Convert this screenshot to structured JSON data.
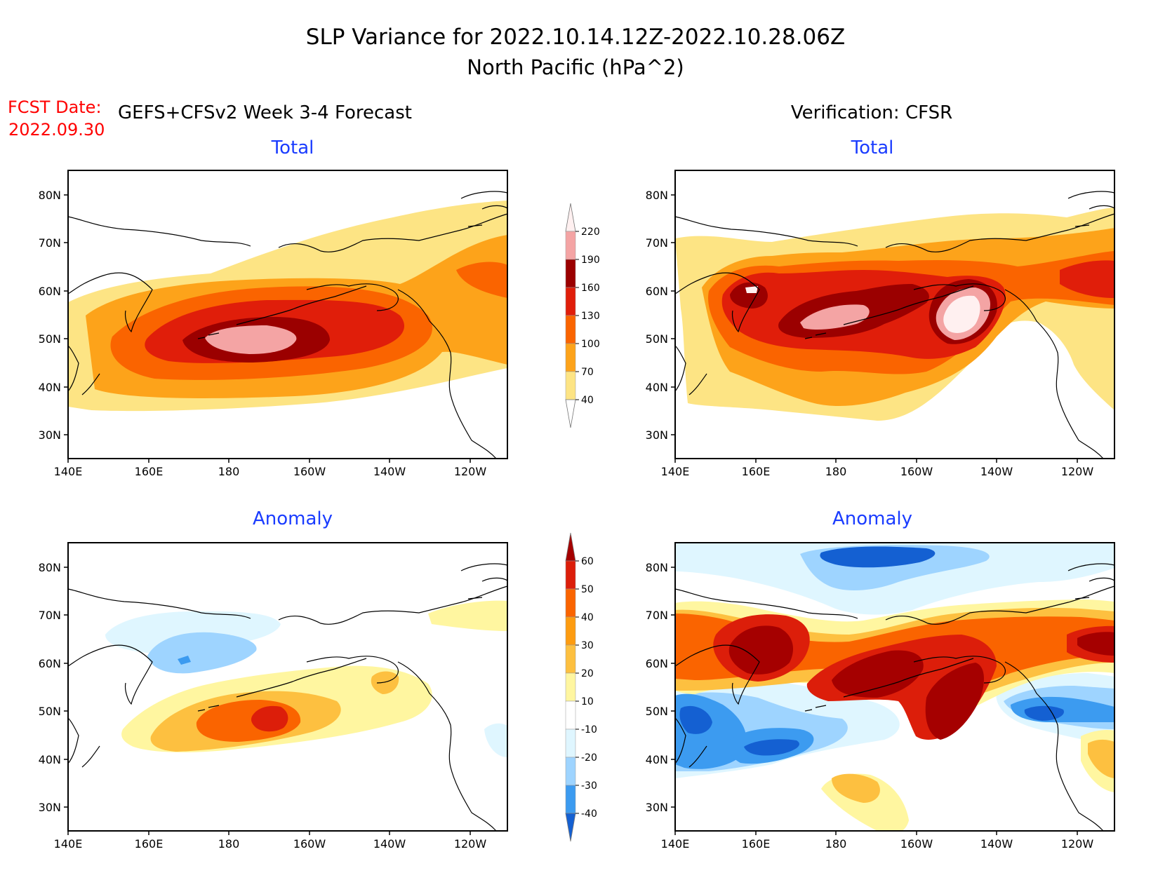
{
  "title_line1": "SLP Variance for 2022.10.14.12Z-2022.10.28.06Z",
  "title_line2": "North Pacific (hPa^2)",
  "fcst_date_label": "FCST Date:",
  "fcst_date_value": "2022.09.30",
  "left_column_title": "GEFS+CFSv2 Week 3-4 Forecast",
  "right_column_title": "Verification: CFSR",
  "panel_titles": {
    "top_left": "Total",
    "top_right": "Total",
    "bottom_left": "Anomaly",
    "bottom_right": "Anomaly"
  },
  "axes": {
    "lon_labels": [
      "140E",
      "160E",
      "180",
      "160W",
      "140W",
      "120W"
    ],
    "lat_labels": [
      "80N",
      "70N",
      "60N",
      "50N",
      "40N",
      "30N"
    ]
  },
  "colors": {
    "title": "#000000",
    "fcst": "#ff0000",
    "panel_title": "#1a3cff"
  },
  "colorbar_total": {
    "labels": [
      "220",
      "190",
      "160",
      "130",
      "100",
      "70",
      "40"
    ],
    "colors": [
      "#fff0f0",
      "#f4a4a4",
      "#9b0000",
      "#e01e0a",
      "#fa6400",
      "#fda31a",
      "#fde484"
    ]
  },
  "colorbar_anomaly": {
    "labels": [
      "60",
      "50",
      "40",
      "30",
      "20",
      "10",
      "-10",
      "-20",
      "-30",
      "-40"
    ],
    "colors": [
      "#a50000",
      "#dc1e0a",
      "#fa6400",
      "#fd9c10",
      "#fdc040",
      "#fff6a0",
      "#ffffff",
      "#dff6ff",
      "#9ed4ff",
      "#3c9bf0",
      "#1460d2"
    ]
  }
}
